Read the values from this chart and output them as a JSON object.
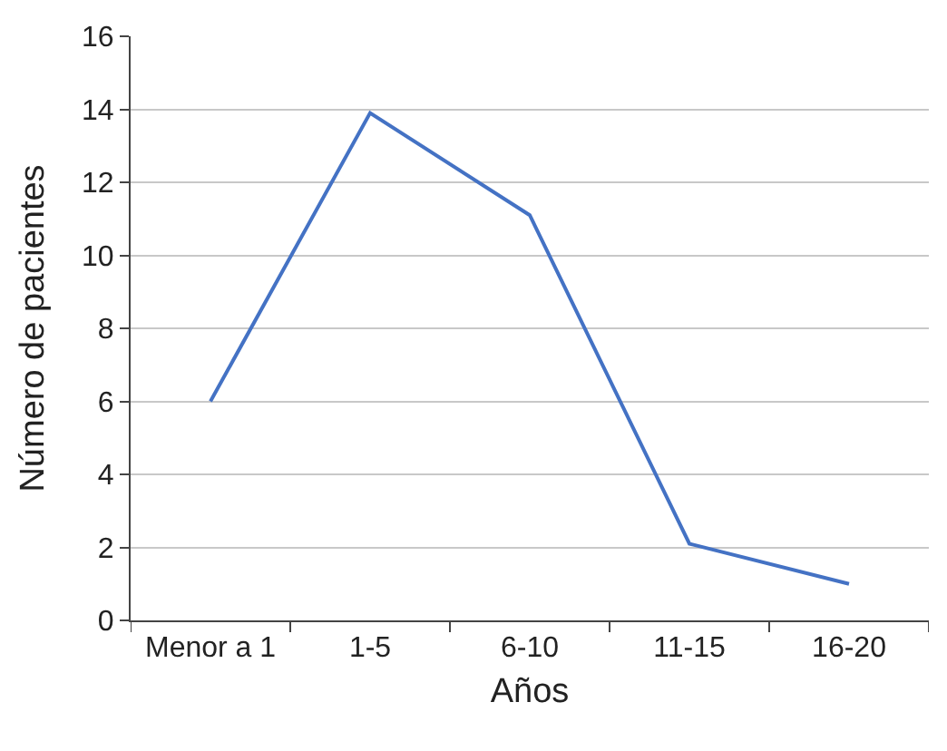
{
  "chart_data": {
    "type": "line",
    "xlabel": "Años",
    "ylabel": "Número de pacientes",
    "categories": [
      "Menor a 1",
      "1-5",
      "6-10",
      "11-15",
      "16-20"
    ],
    "series": [
      {
        "color": "#4472c4",
        "values": [
          6,
          13.9,
          11.1,
          2.1,
          1
        ]
      }
    ],
    "ylim": [
      0,
      16
    ],
    "yticks": [
      0,
      2,
      4,
      6,
      8,
      10,
      12,
      14,
      16
    ],
    "grid": "y",
    "marker": "none",
    "line_style": "solid"
  }
}
